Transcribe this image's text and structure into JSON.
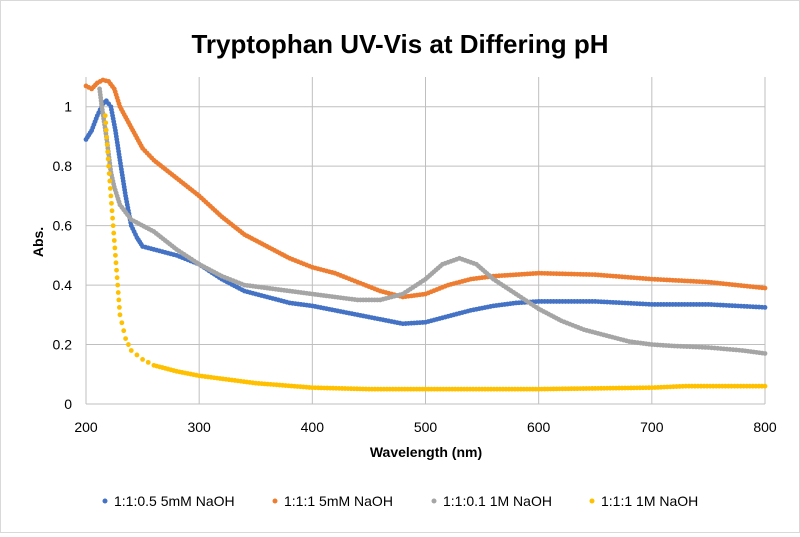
{
  "chart_data": {
    "type": "scatter",
    "title": "Tryptophan UV-Vis at Differing pH",
    "xlabel": "Wavelength (nm)",
    "ylabel": "Abs.",
    "xlim": [
      200,
      800
    ],
    "ylim": [
      0,
      1.1
    ],
    "xticks": [
      200,
      300,
      400,
      500,
      600,
      700,
      800
    ],
    "yticks": [
      0,
      0.2,
      0.4,
      0.6,
      0.8,
      1
    ],
    "ytick_labels": [
      "0",
      "0.2",
      "0.4",
      "0.6",
      "0.8",
      "1"
    ],
    "grid": true,
    "legend_position": "bottom",
    "series": [
      {
        "name": "1:1:0.5 5mM NaOH",
        "color": "#4472C4",
        "x": [
          200,
          205,
          210,
          215,
          218,
          222,
          226,
          230,
          235,
          240,
          245,
          250,
          260,
          280,
          300,
          320,
          340,
          360,
          380,
          400,
          420,
          440,
          460,
          480,
          500,
          520,
          540,
          560,
          580,
          600,
          650,
          700,
          750,
          800
        ],
        "y": [
          0.89,
          0.92,
          0.97,
          1.01,
          1.02,
          1.0,
          0.92,
          0.82,
          0.7,
          0.6,
          0.56,
          0.53,
          0.52,
          0.5,
          0.47,
          0.42,
          0.38,
          0.36,
          0.34,
          0.33,
          0.315,
          0.3,
          0.285,
          0.27,
          0.275,
          0.295,
          0.315,
          0.33,
          0.34,
          0.345,
          0.345,
          0.335,
          0.335,
          0.325
        ]
      },
      {
        "name": "1:1:1 5mM NaOH",
        "color": "#ED7D31",
        "x": [
          200,
          205,
          210,
          215,
          220,
          225,
          230,
          240,
          250,
          260,
          280,
          300,
          320,
          340,
          360,
          380,
          400,
          420,
          440,
          460,
          480,
          500,
          520,
          540,
          560,
          580,
          600,
          650,
          700,
          750,
          800
        ],
        "y": [
          1.07,
          1.06,
          1.08,
          1.09,
          1.085,
          1.06,
          1.0,
          0.93,
          0.86,
          0.82,
          0.76,
          0.7,
          0.63,
          0.57,
          0.53,
          0.49,
          0.46,
          0.44,
          0.41,
          0.38,
          0.36,
          0.37,
          0.4,
          0.42,
          0.43,
          0.435,
          0.44,
          0.435,
          0.42,
          0.41,
          0.39
        ]
      },
      {
        "name": "1:1:0.1 1M NaOH",
        "color": "#A5A5A5",
        "x": [
          212,
          214,
          216,
          218,
          220,
          222,
          225,
          230,
          240,
          260,
          280,
          300,
          320,
          340,
          360,
          380,
          400,
          420,
          440,
          460,
          480,
          500,
          515,
          530,
          545,
          560,
          580,
          600,
          620,
          640,
          660,
          680,
          700,
          720,
          750,
          780,
          800
        ],
        "y": [
          1.06,
          1.0,
          0.95,
          0.9,
          0.84,
          0.78,
          0.73,
          0.67,
          0.62,
          0.58,
          0.52,
          0.47,
          0.43,
          0.4,
          0.39,
          0.38,
          0.37,
          0.36,
          0.35,
          0.35,
          0.37,
          0.42,
          0.47,
          0.49,
          0.47,
          0.42,
          0.37,
          0.32,
          0.28,
          0.25,
          0.23,
          0.21,
          0.2,
          0.195,
          0.19,
          0.18,
          0.17
        ]
      },
      {
        "name": "1:1:1 1M NaOH",
        "color": "#FFC000",
        "x": [
          217,
          220,
          222,
          224,
          226,
          228,
          230,
          235,
          240,
          250,
          260,
          280,
          300,
          350,
          400,
          450,
          500,
          600,
          700,
          730,
          800
        ],
        "y": [
          0.97,
          0.8,
          0.7,
          0.6,
          0.5,
          0.4,
          0.3,
          0.22,
          0.18,
          0.15,
          0.13,
          0.11,
          0.095,
          0.07,
          0.055,
          0.05,
          0.05,
          0.05,
          0.055,
          0.06,
          0.06
        ]
      }
    ]
  }
}
